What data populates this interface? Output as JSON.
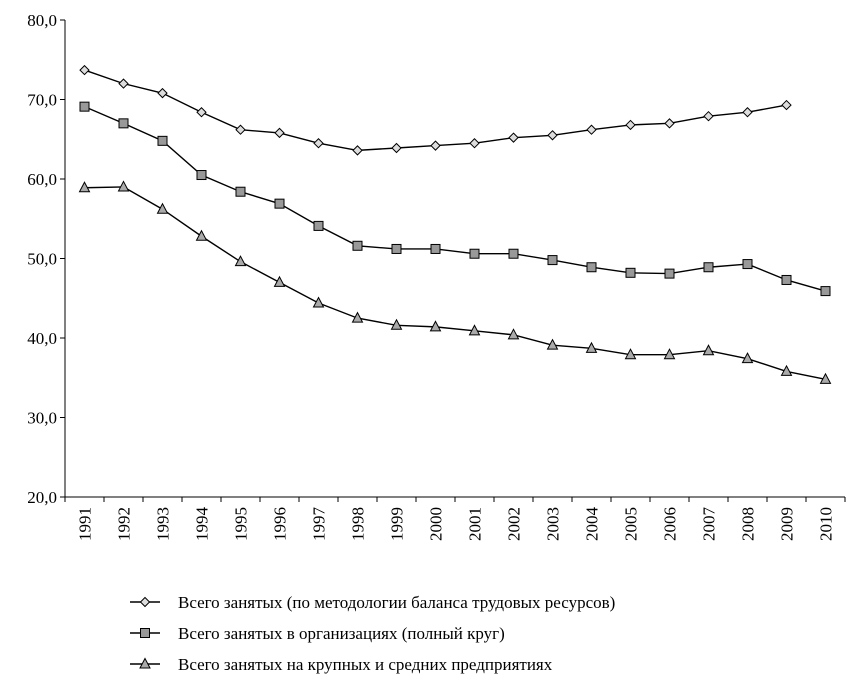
{
  "chart_data": {
    "type": "line",
    "categories": [
      "1991",
      "1992",
      "1993",
      "1994",
      "1995",
      "1996",
      "1997",
      "1998",
      "1999",
      "2000",
      "2001",
      "2002",
      "2003",
      "2004",
      "2005",
      "2006",
      "2007",
      "2008",
      "2009",
      "2010"
    ],
    "series": [
      {
        "name": "Всего занятых (по методологии баланса трудовых ресурсов)",
        "color": "#000000",
        "marker": "diamond",
        "values": [
          73.7,
          72.0,
          70.8,
          68.4,
          66.2,
          65.8,
          64.5,
          63.6,
          63.9,
          64.2,
          64.5,
          65.2,
          65.5,
          66.2,
          66.8,
          67.0,
          67.9,
          68.4,
          69.3,
          null
        ]
      },
      {
        "name": "Всего занятых в  организациях (полный круг)",
        "color": "#000000",
        "marker": "square",
        "values": [
          69.1,
          67.0,
          64.8,
          60.5,
          58.4,
          56.9,
          54.1,
          51.6,
          51.2,
          51.2,
          50.6,
          50.6,
          49.8,
          48.9,
          48.2,
          48.1,
          48.9,
          49.3,
          47.3,
          45.9
        ]
      },
      {
        "name": "Всего занятых на крупных и средних предприятиях",
        "color": "#000000",
        "marker": "triangle",
        "values": [
          58.9,
          59.0,
          56.2,
          52.8,
          49.6,
          47.0,
          44.4,
          42.5,
          41.6,
          41.4,
          40.9,
          40.4,
          39.1,
          38.7,
          37.9,
          37.9,
          38.4,
          37.4,
          35.8,
          34.8
        ]
      }
    ],
    "ylim": [
      20,
      80
    ],
    "yticks": [
      {
        "value": 20,
        "label": "20,0"
      },
      {
        "value": 30,
        "label": "30,0"
      },
      {
        "value": 40,
        "label": "40,0"
      },
      {
        "value": 50,
        "label": "50,0"
      },
      {
        "value": 60,
        "label": "60,0"
      },
      {
        "value": 70,
        "label": "70,0"
      },
      {
        "value": 80,
        "label": "80,0"
      }
    ],
    "grid": false,
    "legend": "bottom"
  }
}
